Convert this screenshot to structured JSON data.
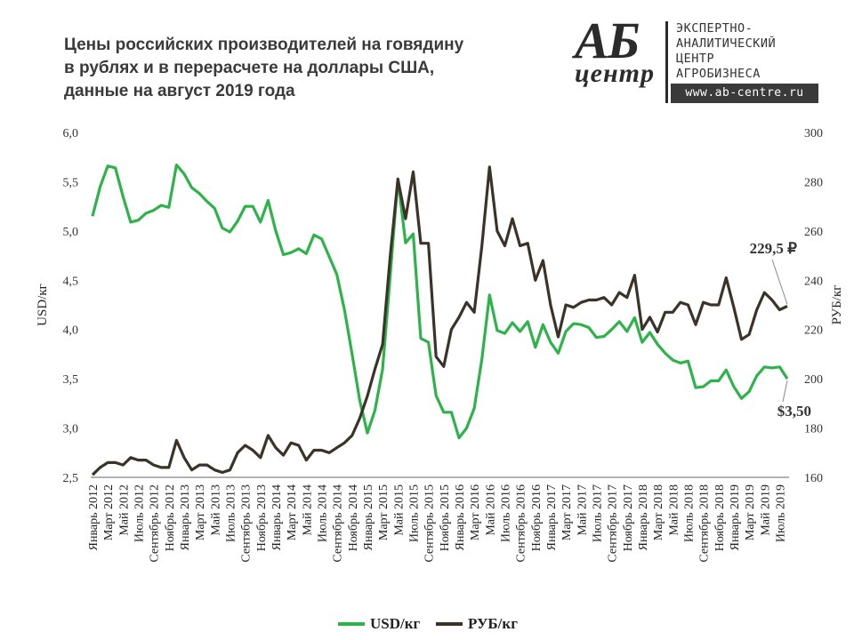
{
  "title_lines": [
    "Цены российских производителей на говядину",
    "в рублях и в перерасчете на доллары США,",
    "данные на август 2019 года"
  ],
  "logo": {
    "mark_top": "АБ",
    "mark_bottom": "центр",
    "org_lines": [
      "ЭКСПЕРТНО-",
      "АНАЛИТИЧЕСКИЙ",
      "ЦЕНТР",
      "АГРОБИЗНЕСА"
    ],
    "url": "www.ab-centre.ru"
  },
  "colors": {
    "usd": "#2db34a",
    "rub": "#3b3327",
    "axis": "#666666"
  },
  "chart_data": {
    "type": "line",
    "x": [
      "Январь 2012",
      "Февраль 2012",
      "Март 2012",
      "Апрель 2012",
      "Май 2012",
      "Июнь 2012",
      "Июль 2012",
      "Август 2012",
      "Сентябрь 2012",
      "Октябрь 2012",
      "Ноябрь 2012",
      "Декабрь 2012",
      "Январь 2013",
      "Февраль 2013",
      "Март 2013",
      "Апрель 2013",
      "Май 2013",
      "Июнь 2013",
      "Июль 2013",
      "Август 2013",
      "Сентябрь 2013",
      "Октябрь 2013",
      "Ноябрь 2013",
      "Декабрь 2013",
      "Январь 2014",
      "Февраль 2014",
      "Март 2014",
      "Апрель 2014",
      "Май 2014",
      "Июнь 2014",
      "Июль 2014",
      "Август 2014",
      "Сентябрь 2014",
      "Октябрь 2014",
      "Ноябрь 2014",
      "Декабрь 2014",
      "Январь 2015",
      "Февраль 2015",
      "Март 2015",
      "Апрель 2015",
      "Май 2015",
      "Июнь 2015",
      "Июль 2015",
      "Август 2015",
      "Сентябрь 2015",
      "Октябрь 2015",
      "Ноябрь 2015",
      "Декабрь 2015",
      "Январь 2016",
      "Февраль 2016",
      "Март 2016",
      "Апрель 2016",
      "Май 2016",
      "Июнь 2016",
      "Июль 2016",
      "Август 2016",
      "Сентябрь 2016",
      "Октябрь 2016",
      "Ноябрь 2016",
      "Декабрь 2016",
      "Январь 2017",
      "Февраль 2017",
      "Март 2017",
      "Апрель 2017",
      "Май 2017",
      "Июнь 2017",
      "Июль 2017",
      "Август 2017",
      "Сентябрь 2017",
      "Октябрь 2017",
      "Ноябрь 2017",
      "Декабрь 2017",
      "Январь 2018",
      "Февраль 2018",
      "Март 2018",
      "Апрель 2018",
      "Май 2018",
      "Июнь 2018",
      "Июль 2018",
      "Август 2018",
      "Сентябрь 2018",
      "Октябрь 2018",
      "Ноябрь 2018",
      "Декабрь 2018",
      "Январь 2019",
      "Февраль 2019",
      "Март 2019",
      "Апрель 2019",
      "Май 2019",
      "Июнь 2019",
      "Июль 2019",
      "Август 2019"
    ],
    "tick_labels": [
      "Январь 2012",
      "Март 2012",
      "Май 2012",
      "Июль 2012",
      "Сентябрь 2012",
      "Ноябрь 2012",
      "Январь 2013",
      "Март 2013",
      "Май 2013",
      "Июль 2013",
      "Сентябрь 2013",
      "Ноябрь 2013",
      "Январь 2014",
      "Март 2014",
      "Май 2014",
      "Июль 2014",
      "Сентябрь 2014",
      "Ноябрь 2014",
      "Январь 2015",
      "Март 2015",
      "Май 2015",
      "Июль 2015",
      "Сентябрь 2015",
      "Ноябрь 2015",
      "Январь 2016",
      "Март 2016",
      "Май 2016",
      "Июль 2016",
      "Сентябрь 2016",
      "Ноябрь 2016",
      "Январь 2017",
      "Март 2017",
      "Май 2017",
      "Июль 2017",
      "Сентябрь 2017",
      "Ноябрь 2017",
      "Январь 2018",
      "Март 2018",
      "Май 2018",
      "Июль 2018",
      "Сентябрь 2018",
      "Ноябрь 2018",
      "Январь 2019",
      "Март 2019",
      "Май 2019",
      "Июль 2019"
    ],
    "series": [
      {
        "name": "USD/кг",
        "axis": "left",
        "values": [
          5.15,
          5.45,
          5.66,
          5.64,
          5.35,
          5.09,
          5.11,
          5.18,
          5.21,
          5.26,
          5.24,
          5.67,
          5.58,
          5.44,
          5.38,
          5.3,
          5.23,
          5.03,
          4.99,
          5.1,
          5.25,
          5.25,
          5.09,
          5.31,
          5.0,
          4.76,
          4.78,
          4.82,
          4.77,
          4.96,
          4.92,
          4.74,
          4.56,
          4.2,
          3.75,
          3.28,
          2.95,
          3.18,
          3.6,
          4.55,
          5.53,
          4.88,
          4.97,
          3.91,
          3.87,
          3.33,
          3.16,
          3.16,
          2.9,
          3.0,
          3.2,
          3.7,
          4.35,
          3.99,
          3.96,
          4.07,
          3.98,
          4.08,
          3.82,
          4.05,
          3.87,
          3.76,
          3.98,
          4.06,
          4.05,
          4.02,
          3.92,
          3.93,
          4.0,
          4.08,
          3.98,
          4.12,
          3.87,
          3.97,
          3.85,
          3.76,
          3.69,
          3.66,
          3.68,
          3.41,
          3.42,
          3.48,
          3.48,
          3.59,
          3.42,
          3.3,
          3.37,
          3.53,
          3.62,
          3.61,
          3.62,
          3.5
        ]
      },
      {
        "name": "РУБ/кг",
        "axis": "right",
        "values": [
          161,
          164,
          166,
          166,
          165,
          168,
          167,
          167,
          165,
          164,
          164,
          175,
          168,
          163,
          165,
          165,
          163,
          162,
          163,
          170,
          173,
          171,
          168,
          177,
          172,
          169,
          174,
          173,
          167,
          171,
          171,
          170,
          172,
          174,
          177,
          184,
          193,
          204,
          214,
          250,
          281,
          265,
          284,
          255,
          255,
          209,
          205,
          220,
          225,
          231,
          227,
          254,
          286,
          260,
          254,
          265,
          254,
          255,
          240,
          248,
          230,
          217,
          230,
          229,
          231,
          232,
          232,
          233,
          230,
          235,
          233,
          242,
          220,
          225,
          219,
          227,
          227,
          231,
          230,
          222,
          231,
          230,
          230,
          241,
          229,
          216,
          218,
          228,
          235,
          232,
          228,
          229.5
        ]
      }
    ],
    "ylabel_left": "USD/кг",
    "ylabel_right": "РУБ/кг",
    "ylim_left": [
      2.5,
      6.0
    ],
    "ylim_right": [
      160,
      300
    ],
    "yticks_left": [
      "2,5",
      "3,0",
      "3,5",
      "4,0",
      "4,5",
      "5,0",
      "5,5",
      "6,0"
    ],
    "yticks_right": [
      "160",
      "180",
      "200",
      "220",
      "240",
      "260",
      "280",
      "300"
    ],
    "grid": false,
    "legend_position": "bottom-center",
    "annotations": {
      "rub_last": "229,5 ₽",
      "usd_last": "$3,50"
    }
  }
}
